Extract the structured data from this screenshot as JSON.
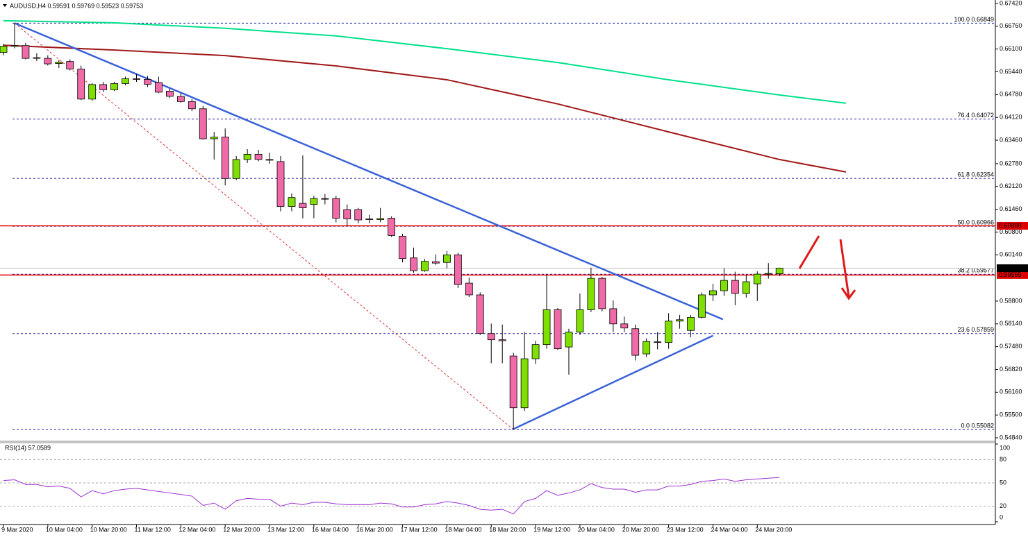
{
  "chart_data": {
    "type": "candlestick",
    "title": "AUDUSD,H4 0.59591 0.59769 0.59523 0.59753",
    "categories": [
      "9 Mar 2020",
      null,
      null,
      null,
      "10 Mar 04:00",
      null,
      null,
      null,
      "10 Mar 20:00",
      null,
      null,
      null,
      "11 Mar 12:00",
      null,
      null,
      null,
      "12 Mar 04:00",
      null,
      null,
      null,
      "12 Mar 20:00",
      null,
      null,
      null,
      "13 Mar 12:00",
      null,
      null,
      null,
      "16 Mar 04:00",
      null,
      null,
      null,
      "16 Mar 20:00",
      null,
      null,
      null,
      "17 Mar 12:00",
      null,
      null,
      null,
      "18 Mar 04:00",
      null,
      null,
      null,
      "18 Mar 20:00",
      null,
      null,
      null,
      "19 Mar 12:00",
      null,
      null,
      null,
      "20 Mar 04:00",
      null,
      null,
      null,
      "20 Mar 20:00",
      null,
      null,
      null,
      "23 Mar 12:00",
      null,
      null,
      null,
      "24 Mar 04:00",
      null,
      null,
      null,
      "24 Mar 20:00",
      null,
      null
    ],
    "open": [
      0.66,
      0.6618,
      0.662,
      0.6585,
      0.6583,
      0.6568,
      0.6574,
      0.6552,
      0.6465,
      0.6507,
      0.6492,
      0.651,
      0.6524,
      0.6522,
      0.6513,
      0.6488,
      0.6473,
      0.6458,
      0.6437,
      0.635,
      0.6355,
      0.6235,
      0.629,
      0.6305,
      0.629,
      0.6284,
      0.6154,
      0.6163,
      0.616,
      0.6177,
      0.6177,
      0.6145,
      0.6145,
      0.6118,
      0.6116,
      0.612,
      0.6068,
      0.6005,
      0.5968,
      0.5994,
      0.5992,
      0.6014,
      0.5932,
      0.5898,
      0.5786,
      0.5768,
      0.5721,
      0.5571,
      0.5713,
      0.5754,
      0.5855,
      0.5747,
      0.579,
      0.5855,
      0.5946,
      0.5858,
      0.5814,
      0.58,
      0.5727,
      0.5762,
      0.576,
      0.5822,
      0.5795,
      0.5833,
      0.5898,
      0.591,
      0.594,
      0.5902,
      0.593,
      0.5958,
      0.59591
    ],
    "high": [
      0.6625,
      0.6685,
      0.6628,
      0.6598,
      0.6592,
      0.6578,
      0.658,
      0.6562,
      0.6512,
      0.6515,
      0.6515,
      0.653,
      0.6538,
      0.6532,
      0.653,
      0.6495,
      0.6482,
      0.6465,
      0.6445,
      0.637,
      0.638,
      0.63,
      0.632,
      0.6318,
      0.631,
      0.63,
      0.6192,
      0.6302,
      0.6185,
      0.619,
      0.6185,
      0.616,
      0.615,
      0.613,
      0.615,
      0.6125,
      0.6075,
      0.6035,
      0.6002,
      0.6015,
      0.6025,
      0.602,
      0.5948,
      0.5905,
      0.5815,
      0.5812,
      0.573,
      0.579,
      0.5765,
      0.5958,
      0.586,
      0.58,
      0.5902,
      0.5977,
      0.595,
      0.5882,
      0.5835,
      0.5812,
      0.5772,
      0.579,
      0.5845,
      0.584,
      0.584,
      0.5905,
      0.593,
      0.5975,
      0.5965,
      0.5955,
      0.5966,
      0.599,
      0.59769
    ],
    "low": [
      0.6592,
      0.6612,
      0.658,
      0.6575,
      0.6562,
      0.6555,
      0.6548,
      0.6462,
      0.646,
      0.6485,
      0.6488,
      0.6505,
      0.6515,
      0.65,
      0.6482,
      0.6468,
      0.6455,
      0.643,
      0.6348,
      0.629,
      0.6215,
      0.623,
      0.628,
      0.6285,
      0.6278,
      0.614,
      0.614,
      0.612,
      0.612,
      0.616,
      0.6108,
      0.6098,
      0.6105,
      0.6105,
      0.6108,
      0.6066,
      0.5992,
      0.5962,
      0.5965,
      0.5985,
      0.5975,
      0.5918,
      0.5892,
      0.5782,
      0.57,
      0.57,
      0.5508,
      0.5562,
      0.5698,
      0.5742,
      0.5738,
      0.5667,
      0.5782,
      0.5848,
      0.585,
      0.579,
      0.579,
      0.5708,
      0.5718,
      0.574,
      0.5742,
      0.58,
      0.5775,
      0.583,
      0.588,
      0.5895,
      0.5868,
      0.589,
      0.588,
      0.5945,
      0.59523
    ],
    "close": [
      0.6618,
      0.662,
      0.6583,
      0.6584,
      0.6567,
      0.6572,
      0.6552,
      0.6465,
      0.6507,
      0.6492,
      0.651,
      0.6524,
      0.6522,
      0.6508,
      0.6485,
      0.6473,
      0.6458,
      0.6437,
      0.635,
      0.6355,
      0.6235,
      0.629,
      0.6305,
      0.629,
      0.6288,
      0.6154,
      0.618,
      0.615,
      0.6177,
      0.6175,
      0.612,
      0.6118,
      0.6115,
      0.6116,
      0.6119,
      0.607,
      0.6003,
      0.5968,
      0.5995,
      0.599,
      0.6014,
      0.5928,
      0.5898,
      0.5786,
      0.5768,
      0.5765,
      0.5571,
      0.5713,
      0.5754,
      0.5855,
      0.5742,
      0.579,
      0.5855,
      0.5946,
      0.5858,
      0.5814,
      0.5802,
      0.5723,
      0.5763,
      0.576,
      0.5822,
      0.5826,
      0.5833,
      0.5898,
      0.591,
      0.594,
      0.5902,
      0.5936,
      0.5958,
      0.596,
      0.59753
    ],
    "up_color": "#7fe000",
    "down_color": "#f06aa8",
    "ylim": [
      0.5474,
      0.6752
    ],
    "yticks": [
      {
        "value": 0.6742,
        "label": "0.67420"
      },
      {
        "value": 0.6676,
        "label": "0.66760"
      },
      {
        "value": 0.661,
        "label": "0.66100"
      },
      {
        "value": 0.6544,
        "label": "0.65440"
      },
      {
        "value": 0.6478,
        "label": "0.64780"
      },
      {
        "value": 0.6412,
        "label": "0.64120"
      },
      {
        "value": 0.6346,
        "label": "0.63460"
      },
      {
        "value": 0.6278,
        "label": "0.62780"
      },
      {
        "value": 0.6212,
        "label": "0.62120"
      },
      {
        "value": 0.6146,
        "label": "0.61460"
      },
      {
        "value": 0.608,
        "label": "0.60800"
      },
      {
        "value": 0.6014,
        "label": "0.60140"
      },
      {
        "value": 0.588,
        "label": "0.58800"
      },
      {
        "value": 0.5814,
        "label": "0.58140"
      },
      {
        "value": 0.5748,
        "label": "0.57480"
      },
      {
        "value": 0.5682,
        "label": "0.56820"
      },
      {
        "value": 0.5616,
        "label": "0.56160"
      },
      {
        "value": 0.555,
        "label": "0.55500"
      },
      {
        "value": 0.5484,
        "label": "0.54840"
      }
    ],
    "fib_levels": [
      {
        "value": 0.66849,
        "label": "100.0 0.66849"
      },
      {
        "value": 0.64072,
        "label": "76.4 0.64072"
      },
      {
        "value": 0.62354,
        "label": "61.8 0.62354"
      },
      {
        "value": 0.60966,
        "label": "50.0 0.60966"
      },
      {
        "value": 0.59577,
        "label": "38.2 0.59577"
      },
      {
        "value": 0.57859,
        "label": "23.6 0.57859"
      },
      {
        "value": 0.55082,
        "label": "0.0 0.55082"
      }
    ],
    "fib_color": "#1a1aa0",
    "hlines": [
      {
        "value": 0.6098,
        "label": "0.60980",
        "color": "#e00000"
      },
      {
        "value": 0.59555,
        "label": "0.59555",
        "color": "#e00000"
      },
      {
        "value": 0.59753,
        "label": "0.59753",
        "color": "#000000"
      }
    ],
    "moving_averages": [
      {
        "color": "#00e08a",
        "x": [
          0,
          10,
          20,
          30,
          40,
          50,
          60,
          70,
          76
        ],
        "values": [
          0.6692,
          0.6686,
          0.667,
          0.6648,
          0.6611,
          0.6571,
          0.6521,
          0.6477,
          0.6453
        ]
      },
      {
        "color": "#a01818",
        "x": [
          0,
          10,
          20,
          30,
          40,
          50,
          60,
          70,
          76
        ],
        "values": [
          0.6621,
          0.6607,
          0.6591,
          0.6561,
          0.6521,
          0.6451,
          0.637,
          0.629,
          0.6254
        ]
      }
    ],
    "trendlines": [
      {
        "color": "#3a62d8",
        "dashed": false,
        "x": [
          1,
          64.9
        ],
        "values": [
          0.6685,
          0.5827
        ]
      },
      {
        "color": "#3a62d8",
        "dashed": false,
        "x": [
          45.9,
          64
        ],
        "values": [
          0.5508,
          0.578
        ]
      },
      {
        "color": "#e03030",
        "dashed": true,
        "x": [
          1,
          46
        ],
        "values": [
          0.6685,
          0.5508
        ]
      }
    ],
    "rsi": {
      "title": "RSI(14) 57.0589",
      "color": "#9b30d0",
      "values": [
        53,
        54,
        48,
        48,
        45,
        46,
        43,
        32,
        40,
        36,
        40,
        42,
        43,
        41,
        39,
        37,
        35,
        33,
        21,
        24,
        16,
        27,
        30,
        29,
        29,
        20,
        24,
        22,
        25,
        25,
        23,
        22,
        22,
        22,
        24,
        23,
        19,
        19,
        22,
        23,
        26,
        24,
        21,
        16,
        15,
        16,
        10,
        26,
        30,
        40,
        34,
        37,
        41,
        49,
        44,
        42,
        42,
        38,
        41,
        41,
        46,
        46,
        48,
        52,
        53,
        55,
        52,
        54,
        55,
        56,
        57.0589
      ],
      "ylim": [
        0,
        100
      ],
      "yticks": [
        0,
        20,
        50,
        80,
        100
      ]
    }
  }
}
